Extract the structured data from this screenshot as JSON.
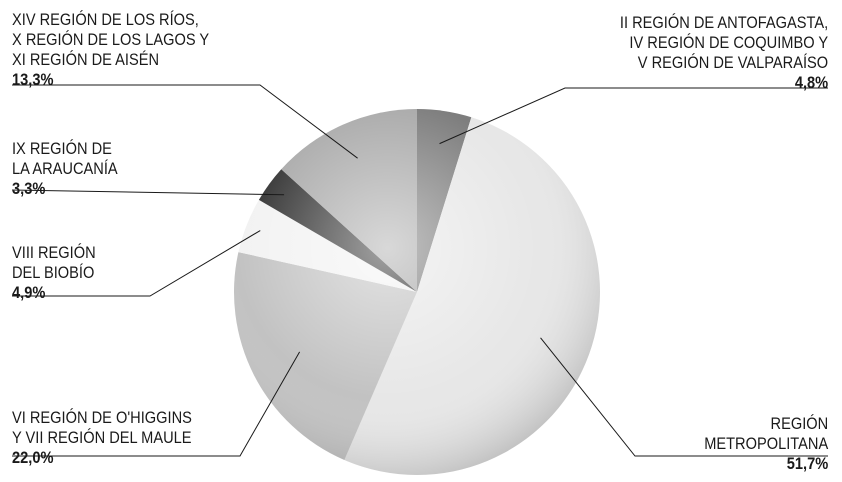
{
  "chart_data": {
    "type": "pie",
    "title": "",
    "colors": {
      "metropolitana": "#e7e7e7",
      "ohiggins_maule": "#c2c2c2",
      "biobio": "#f2f2f2",
      "araucania": "#333333",
      "rios_lagos_aisen": "#a9a9a9",
      "antofagasta_coquimbo_valparaiso": "#7d7d7d",
      "leader_line": "#1a1a1a"
    },
    "slices": [
      {
        "key": "antofagasta",
        "lines": [
          "II REGIÓN DE ANTOFAGASTA,",
          "IV REGIÓN DE COQUIMBO Y",
          "V REGIÓN DE VALPARAÍSO"
        ],
        "value": 4.8,
        "value_label": "4,8%"
      },
      {
        "key": "metropolitana",
        "lines": [
          "REGIÓN",
          "METROPOLITANA"
        ],
        "value": 51.7,
        "value_label": "51,7%"
      },
      {
        "key": "ohiggins",
        "lines": [
          "VI REGIÓN DE O'HIGGINS",
          "Y VII REGIÓN DEL MAULE"
        ],
        "value": 22.0,
        "value_label": "22,0%"
      },
      {
        "key": "biobio",
        "lines": [
          "VIII REGIÓN",
          "DEL BIOBÍO"
        ],
        "value": 4.9,
        "value_label": "4,9%"
      },
      {
        "key": "araucania",
        "lines": [
          "IX REGIÓN DE",
          "LA ARAUCANÍA"
        ],
        "value": 3.3,
        "value_label": "3,3%"
      },
      {
        "key": "rios",
        "lines": [
          "XIV REGIÓN DE LOS RÍOS,",
          "X REGIÓN DE LOS LAGOS Y",
          "XI REGIÓN DE AISÉN"
        ],
        "value": 13.3,
        "value_label": "13,3%"
      }
    ]
  }
}
